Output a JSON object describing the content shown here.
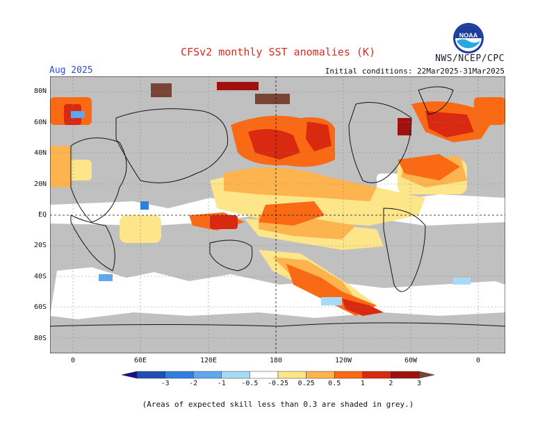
{
  "title": "CFSv2 monthly SST anomalies (K)",
  "organization": "NWS/NCEP/CPC",
  "target_month": "Aug 2025",
  "initial_conditions": "Initial conditions: 22Mar2025-31Mar2025",
  "logo_text": "NOAA",
  "lat_labels": [
    "80N",
    "60N",
    "40N",
    "20N",
    "EQ",
    "20S",
    "40S",
    "60S",
    "80S"
  ],
  "lon_labels": [
    "0",
    "60E",
    "120E",
    "180",
    "120W",
    "60W",
    "0"
  ],
  "colorbar": {
    "labels": [
      "-3",
      "-2",
      "-1",
      "-0.5",
      "-0.25",
      "0.25",
      "0.5",
      "1",
      "2",
      "3"
    ],
    "colors": [
      "#1a0c8c",
      "#1f4fb5",
      "#2e7fe0",
      "#5fa8f0",
      "#a8daf5",
      "#ffffff",
      "#fde58a",
      "#fdb44f",
      "#fa6a14",
      "#d92910",
      "#a1100c",
      "#7a4434"
    ]
  },
  "land_color": "#c0c0c0",
  "footnote": "(Areas of expected skill less than 0.3 are shaded in grey.)"
}
